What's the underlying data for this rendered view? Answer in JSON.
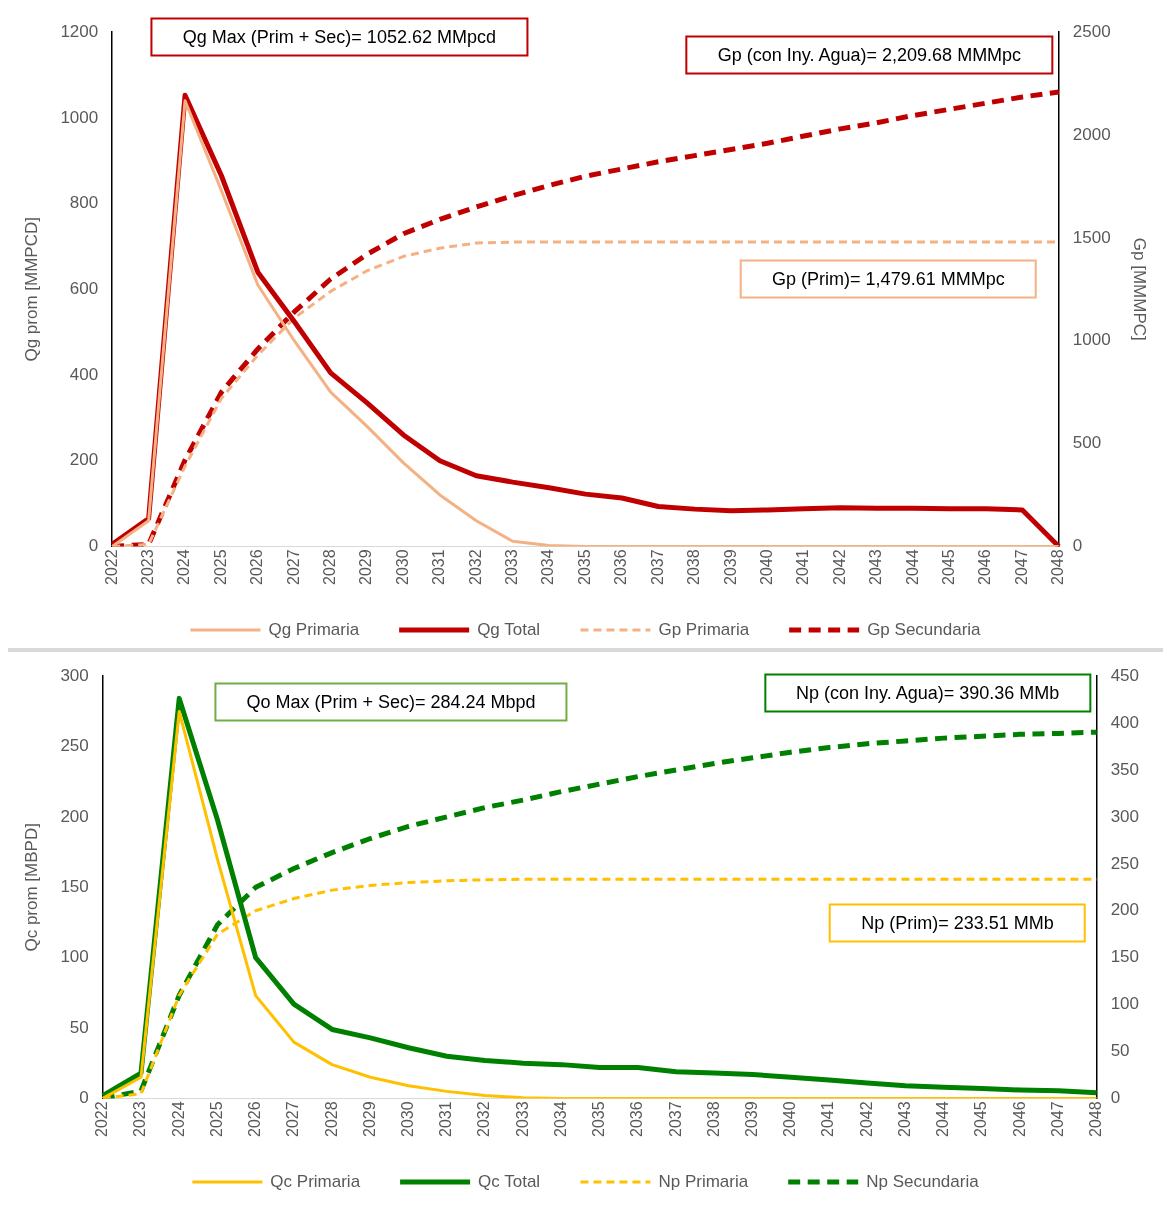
{
  "chart_data": [
    {
      "type": "line",
      "ylabel": "Qg prom [MMPCD]",
      "y2label": "Gp [MMMPC]",
      "categories": [
        "2022",
        "2023",
        "2024",
        "2025",
        "2026",
        "2027",
        "2028",
        "2029",
        "2030",
        "2031",
        "2032",
        "2033",
        "2034",
        "2035",
        "2036",
        "2037",
        "2038",
        "2039",
        "2040",
        "2041",
        "2042",
        "2043",
        "2044",
        "2045",
        "2046",
        "2047",
        "2048"
      ],
      "series": [
        {
          "name": "Qg Primaria",
          "color": "#f4b183",
          "line_style": "solid",
          "values": [
            0,
            60,
            1040,
            830,
            610,
            480,
            360,
            280,
            195,
            120,
            60,
            12,
            2,
            0,
            0,
            0,
            0,
            0,
            0,
            0,
            0,
            0,
            0,
            0,
            0,
            0,
            0
          ]
        },
        {
          "name": "Qg Total",
          "color": "#c00000",
          "line_style": "solid",
          "values": [
            5,
            65,
            1052.62,
            865,
            640,
            525,
            405,
            335,
            260,
            200,
            165,
            150,
            137,
            122,
            113,
            93,
            87,
            83,
            85,
            88,
            90,
            89,
            89,
            88,
            88,
            85,
            0
          ]
        },
        {
          "name": "Gp Primaria",
          "color": "#f4b183",
          "line_style": "dashed",
          "axis": "y2",
          "values": [
            0,
            10,
            390,
            720,
            930,
            1110,
            1240,
            1340,
            1410,
            1450,
            1475,
            1479.61,
            1479.61,
            1479.61,
            1479.61,
            1479.61,
            1479.61,
            1479.61,
            1479.61,
            1479.61,
            1479.61,
            1479.61,
            1479.61,
            1479.61,
            1479.61,
            1479.61,
            1479.61
          ]
        },
        {
          "name": "Gp Secundaria",
          "color": "#c00000",
          "line_style": "dashed",
          "axis": "y2",
          "values": [
            0,
            10,
            420,
            750,
            960,
            1140,
            1300,
            1420,
            1520,
            1590,
            1650,
            1705,
            1755,
            1800,
            1835,
            1870,
            1900,
            1930,
            1960,
            1995,
            2030,
            2060,
            2095,
            2125,
            2155,
            2185,
            2209.68
          ]
        }
      ],
      "ylim": [
        0,
        1200
      ],
      "yticks": [
        0,
        200,
        400,
        600,
        800,
        1000,
        1200
      ],
      "y2lim": [
        0,
        2500
      ],
      "y2ticks": [
        0,
        500,
        1000,
        1500,
        2000,
        2500
      ],
      "grid": false,
      "legend": "bottom",
      "marker": "none",
      "annotations": [
        "Qg Max (Prim + Sec)= 1052.62 MMpcd",
        "Gp (con Iny. Agua)= 2,209.68 MMMpc",
        "Gp (Prim)= 1,479.61 MMMpc"
      ]
    },
    {
      "type": "line",
      "ylabel": "Qc prom [MBPD]",
      "categories": [
        "2022",
        "2023",
        "2024",
        "2025",
        "2026",
        "2027",
        "2028",
        "2029",
        "2030",
        "2031",
        "2032",
        "2033",
        "2034",
        "2035",
        "2036",
        "2037",
        "2038",
        "2039",
        "2040",
        "2041",
        "2042",
        "2043",
        "2044",
        "2045",
        "2046",
        "2047",
        "2048"
      ],
      "series": [
        {
          "name": "Qc Primaria",
          "color": "#ffc000",
          "line_style": "solid",
          "values": [
            0,
            15,
            275,
            170,
            73,
            40,
            24,
            15,
            9,
            5,
            2,
            0.5,
            0,
            0,
            0,
            0,
            0,
            0,
            0,
            0,
            0,
            0,
            0,
            0,
            0,
            0,
            0
          ]
        },
        {
          "name": "Qc Total",
          "color": "#008000",
          "line_style": "solid",
          "values": [
            2,
            18,
            284.24,
            198,
            100,
            67,
            49,
            43,
            36,
            30,
            27,
            25,
            24,
            22,
            22,
            19,
            18,
            17,
            15,
            13,
            11,
            9,
            8,
            7,
            6,
            5.5,
            4
          ]
        },
        {
          "name": "Np Primaria",
          "color": "#ffc000",
          "line_style": "dashed",
          "axis": "y2",
          "values": [
            0,
            5,
            110,
            175,
            200,
            213,
            222,
            227,
            230,
            232,
            233,
            233.51,
            233.51,
            233.51,
            233.51,
            233.51,
            233.51,
            233.51,
            233.51,
            233.51,
            233.51,
            233.51,
            233.51,
            233.51,
            233.51,
            233.51,
            233.51
          ]
        },
        {
          "name": "Np Secundaria",
          "color": "#008000",
          "line_style": "dashed",
          "axis": "y2",
          "values": [
            0,
            8,
            110,
            185,
            225,
            245,
            262,
            277,
            290,
            300,
            310,
            318,
            327,
            335,
            343,
            350,
            357,
            363,
            369,
            374,
            378,
            381,
            384,
            386,
            388,
            389,
            390.36
          ]
        }
      ],
      "ylim": [
        0,
        300
      ],
      "yticks": [
        0,
        50,
        100,
        150,
        200,
        250,
        300
      ],
      "y2lim": [
        0,
        450
      ],
      "y2ticks": [
        0,
        50,
        100,
        150,
        200,
        250,
        300,
        350,
        400,
        450
      ],
      "grid": false,
      "legend": "bottom",
      "marker": "none",
      "annotations": [
        "Qo Max (Prim + Sec)= 284.24 Mbpd",
        "Np (con Iny. Agua)= 390.36 MMb",
        "Np (Prim)= 233.51 MMb"
      ]
    }
  ]
}
